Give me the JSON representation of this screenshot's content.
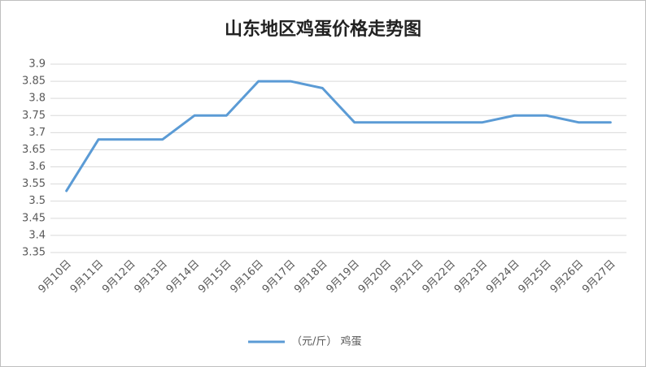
{
  "chart_data": {
    "type": "line",
    "title": "山东地区鸡蛋价格走势图",
    "categories": [
      "9月10日",
      "9月11日",
      "9月12日",
      "9月13日",
      "9月14日",
      "9月15日",
      "9月16日",
      "9月17日",
      "9月18日",
      "9月19日",
      "9月20日",
      "9月21日",
      "9月22日",
      "9月23日",
      "9月24日",
      "9月25日",
      "9月26日",
      "9月27日"
    ],
    "series": [
      {
        "name": "（元/斤） 鸡蛋",
        "color": "#5b9bd5",
        "values": [
          3.53,
          3.68,
          3.68,
          3.68,
          3.75,
          3.75,
          3.85,
          3.85,
          3.83,
          3.73,
          3.73,
          3.73,
          3.73,
          3.73,
          3.75,
          3.75,
          3.73,
          3.73
        ]
      }
    ],
    "ylim": [
      3.35,
      3.9
    ],
    "yticks": [
      3.35,
      3.4,
      3.45,
      3.5,
      3.55,
      3.6,
      3.65,
      3.7,
      3.75,
      3.8,
      3.85,
      3.9
    ],
    "grid": true,
    "legend": "bottom"
  }
}
